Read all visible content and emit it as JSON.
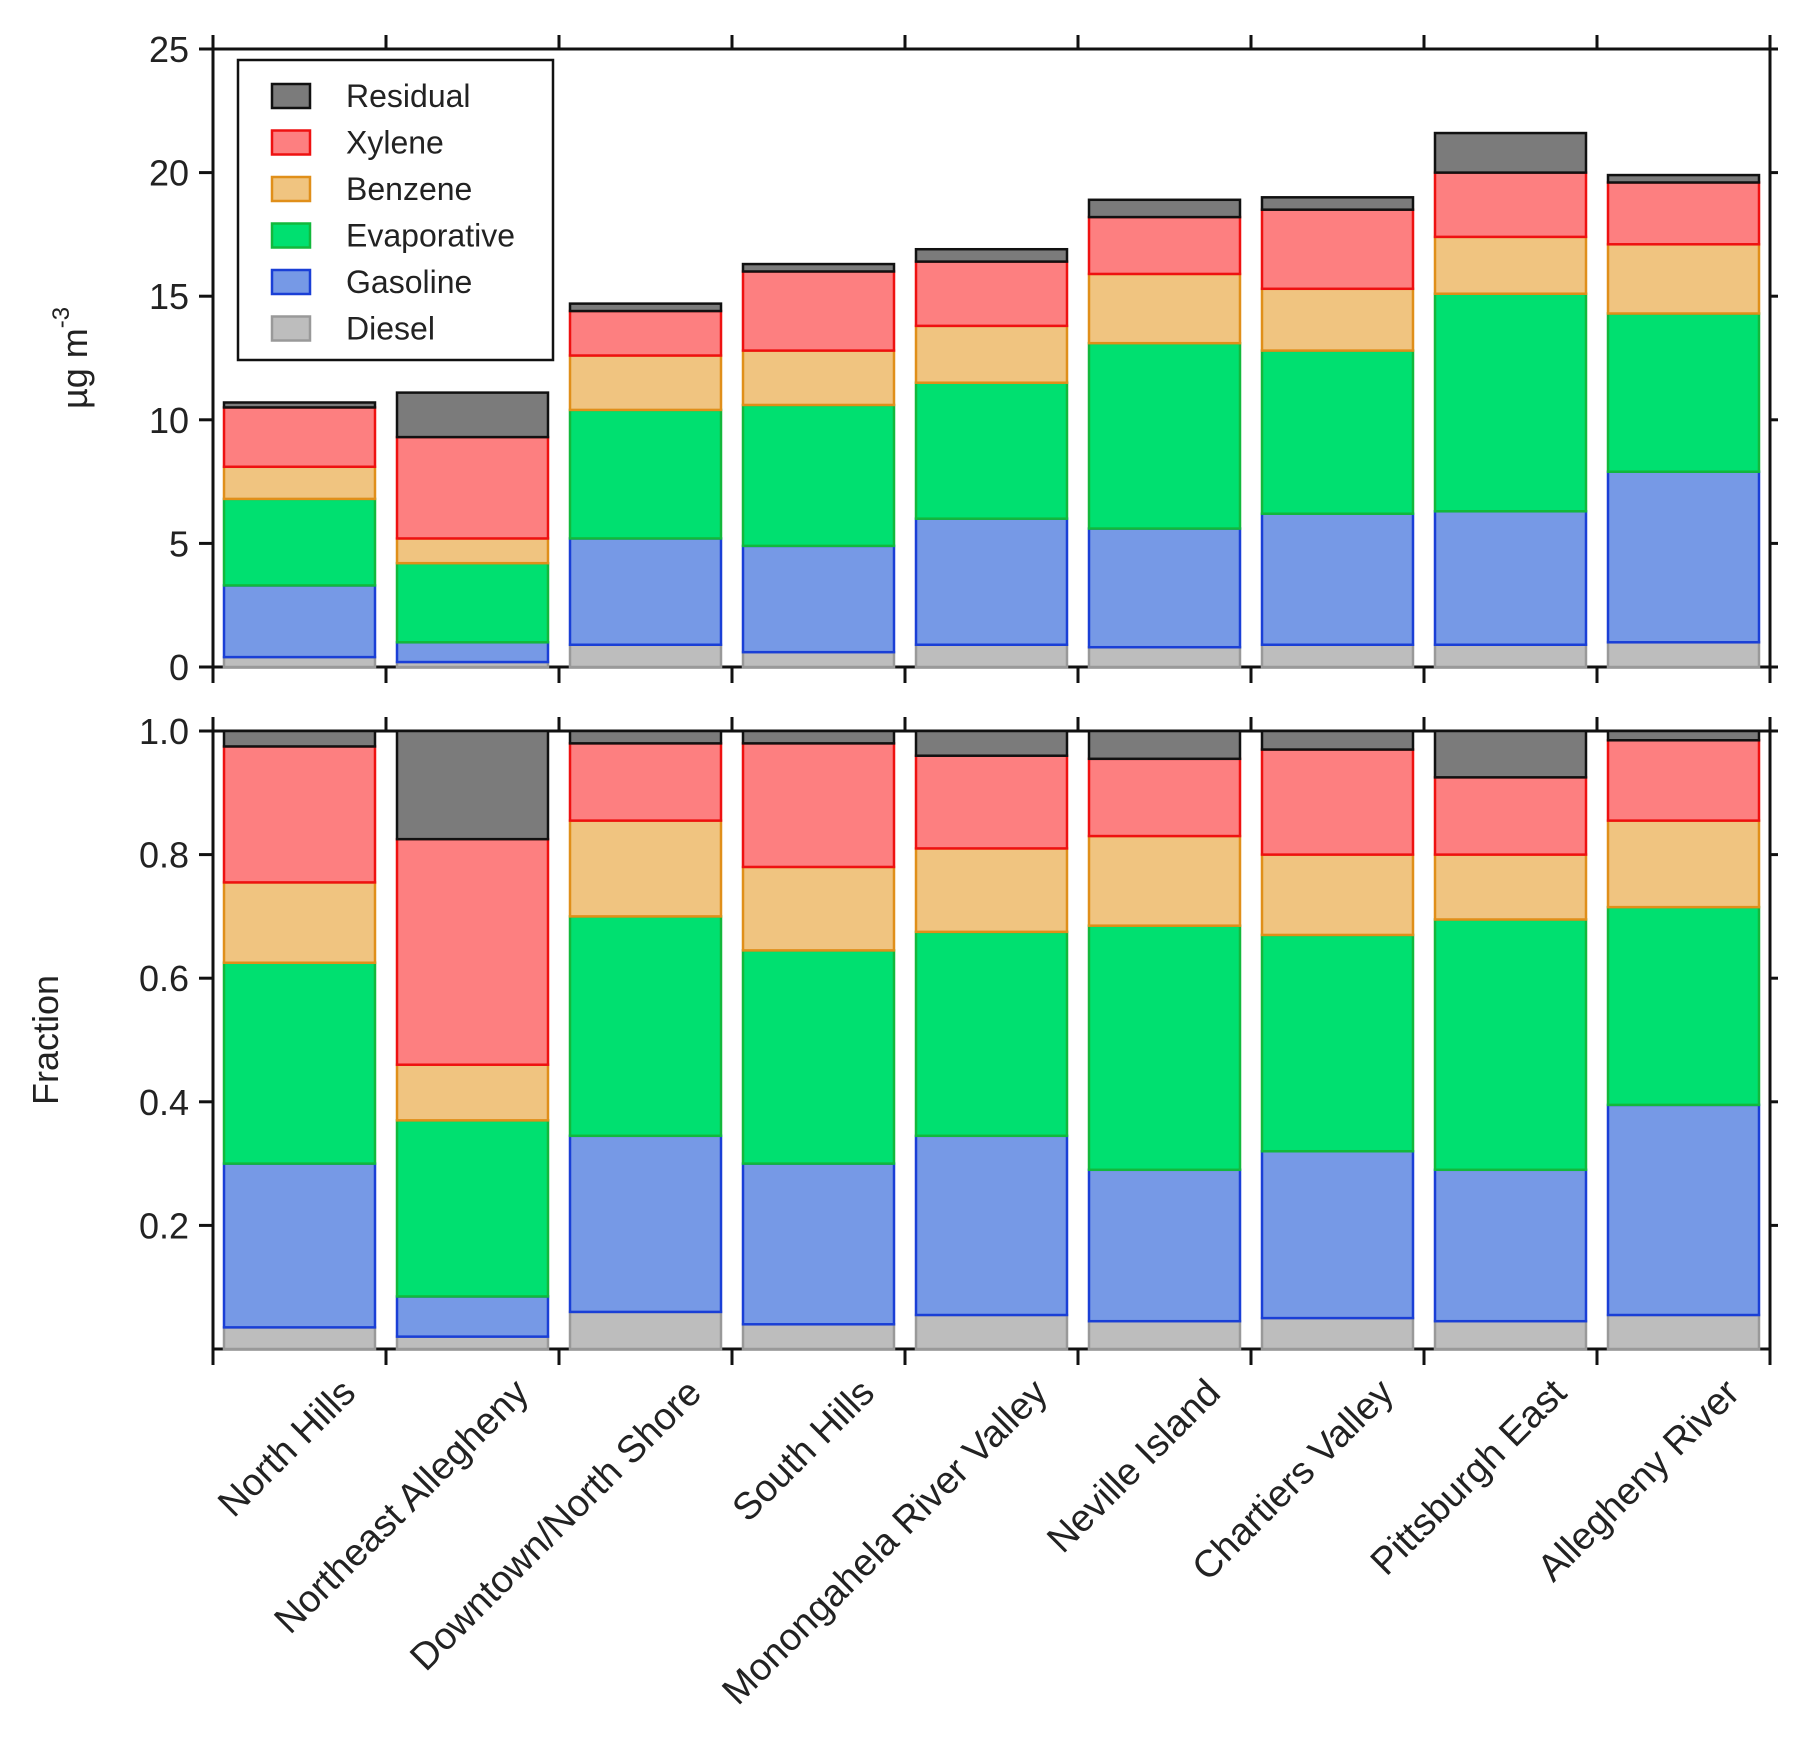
{
  "chart_data": [
    {
      "type": "bar",
      "stacked": true,
      "panel": "top",
      "ylabel": "µg m",
      "ylabel_superscript": "-3",
      "ylim": [
        0,
        25
      ],
      "yticks": [
        0,
        5,
        10,
        15,
        20,
        25
      ],
      "grid": false,
      "legend_position": "top-left",
      "categories": [
        "North Hills",
        "Northeast Allegheny",
        "Downtown/North Shore",
        "South Hills",
        "Monongahela River Valley",
        "Neville Island",
        "Chartiers Valley",
        "Pittsburgh East",
        "Allegheny River"
      ],
      "series": [
        {
          "name": "Diesel",
          "color": "#bdbdbd",
          "edge": "#999999",
          "values": [
            0.4,
            0.2,
            0.9,
            0.6,
            0.9,
            0.8,
            0.9,
            0.9,
            1.0
          ]
        },
        {
          "name": "Gasoline",
          "color": "#7699e6",
          "edge": "#1a3fd6",
          "values": [
            2.9,
            0.8,
            4.3,
            4.3,
            5.1,
            4.8,
            5.3,
            5.4,
            6.9
          ]
        },
        {
          "name": "Evaporative",
          "color": "#00e070",
          "edge": "#12b83c",
          "values": [
            3.5,
            3.2,
            5.2,
            5.7,
            5.5,
            7.5,
            6.6,
            8.8,
            6.4
          ]
        },
        {
          "name": "Benzene",
          "color": "#f0c480",
          "edge": "#e08f1a",
          "values": [
            1.3,
            1.0,
            2.2,
            2.2,
            2.3,
            2.8,
            2.5,
            2.3,
            2.8
          ]
        },
        {
          "name": "Xylene",
          "color": "#fd7f80",
          "edge": "#ee1111",
          "values": [
            2.4,
            4.1,
            1.8,
            3.2,
            2.6,
            2.3,
            3.2,
            2.6,
            2.5
          ]
        },
        {
          "name": "Residual",
          "color": "#7b7b7b",
          "edge": "#111111",
          "values": [
            0.2,
            1.8,
            0.3,
            0.3,
            0.5,
            0.7,
            0.5,
            1.6,
            0.3
          ]
        }
      ]
    },
    {
      "type": "bar",
      "stacked": true,
      "panel": "bottom",
      "ylabel": "Fraction",
      "ylim": [
        0,
        1.0
      ],
      "yticks": [
        0.2,
        0.4,
        0.6,
        0.8,
        1.0
      ],
      "ytick_labels": [
        "0.2",
        "0.4",
        "0.6",
        "0.8",
        "1.0"
      ],
      "grid": false,
      "categories": [
        "North Hills",
        "Northeast Allegheny",
        "Downtown/North Shore",
        "South Hills",
        "Monongahela River Valley",
        "Neville Island",
        "Chartiers Valley",
        "Pittsburgh East",
        "Allegheny River"
      ],
      "series": [
        {
          "name": "Diesel",
          "color": "#bdbdbd",
          "edge": "#999999",
          "values": [
            0.035,
            0.02,
            0.06,
            0.04,
            0.055,
            0.045,
            0.05,
            0.045,
            0.055
          ]
        },
        {
          "name": "Gasoline",
          "color": "#7699e6",
          "edge": "#1a3fd6",
          "values": [
            0.265,
            0.065,
            0.285,
            0.26,
            0.29,
            0.245,
            0.27,
            0.245,
            0.34
          ]
        },
        {
          "name": "Evaporative",
          "color": "#00e070",
          "edge": "#12b83c",
          "values": [
            0.325,
            0.285,
            0.355,
            0.345,
            0.33,
            0.395,
            0.35,
            0.405,
            0.32
          ]
        },
        {
          "name": "Benzene",
          "color": "#f0c480",
          "edge": "#e08f1a",
          "values": [
            0.13,
            0.09,
            0.155,
            0.135,
            0.135,
            0.145,
            0.13,
            0.105,
            0.14
          ]
        },
        {
          "name": "Xylene",
          "color": "#fd7f80",
          "edge": "#ee1111",
          "values": [
            0.22,
            0.365,
            0.125,
            0.2,
            0.15,
            0.125,
            0.17,
            0.125,
            0.13
          ]
        },
        {
          "name": "Residual",
          "color": "#7b7b7b",
          "edge": "#111111",
          "values": [
            0.025,
            0.175,
            0.02,
            0.02,
            0.04,
            0.045,
            0.03,
            0.075,
            0.015
          ]
        }
      ]
    }
  ],
  "legend": {
    "entries": [
      "Residual",
      "Xylene",
      "Benzene",
      "Evaporative",
      "Gasoline",
      "Diesel"
    ]
  }
}
